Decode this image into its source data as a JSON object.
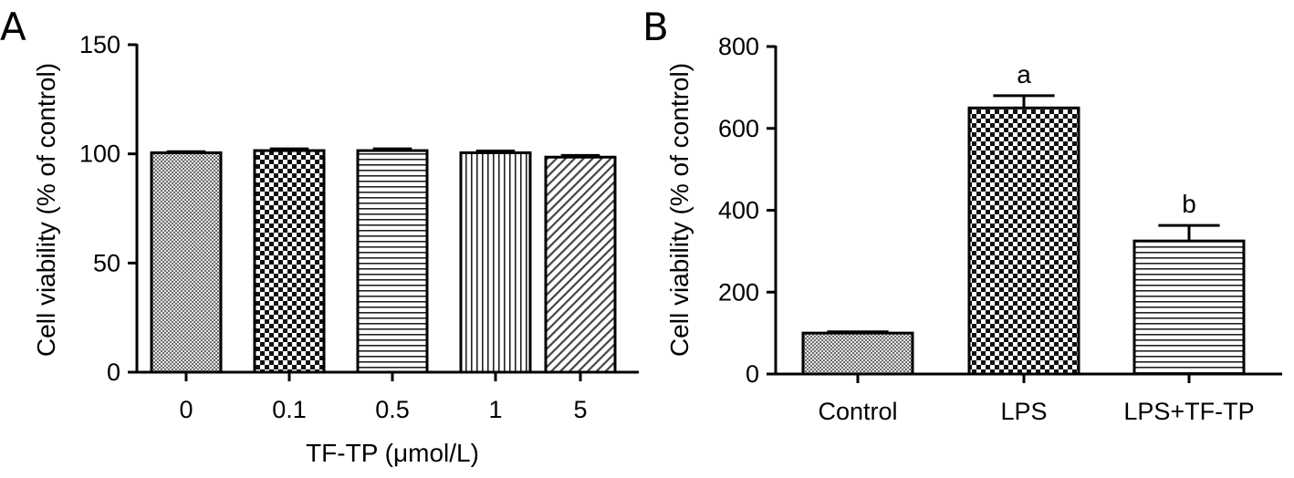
{
  "chart_data": [
    {
      "type": "bar",
      "panel": "A",
      "categories": [
        "0",
        "0.1",
        "0.5",
        "1",
        "5"
      ],
      "values": [
        100.5,
        101.5,
        101.5,
        100.5,
        98.5
      ],
      "errors": [
        0.5,
        0.8,
        0.8,
        0.8,
        0.8
      ],
      "patterns": [
        "fine-check",
        "checker",
        "hstripes",
        "vstripes",
        "diagonal"
      ],
      "xlabel": "TF-TP (μmol/L)",
      "ylabel": "Cell viability (% of control)",
      "ylim": [
        0,
        150
      ],
      "yticks": [
        0,
        50,
        100,
        150
      ],
      "annotations": [
        "",
        "",
        "",
        "",
        ""
      ]
    },
    {
      "type": "bar",
      "panel": "B",
      "categories": [
        "Control",
        "LPS",
        "LPS+TF-TP"
      ],
      "values": [
        100,
        650,
        325
      ],
      "errors": [
        3,
        30,
        38
      ],
      "patterns": [
        "fine-check",
        "checker",
        "hstripes"
      ],
      "xlabel": "",
      "ylabel": "Cell viability (% of control)",
      "ylim": [
        0,
        800
      ],
      "yticks": [
        0,
        200,
        400,
        600,
        800
      ],
      "annotations": [
        "",
        "a",
        "b"
      ]
    }
  ]
}
